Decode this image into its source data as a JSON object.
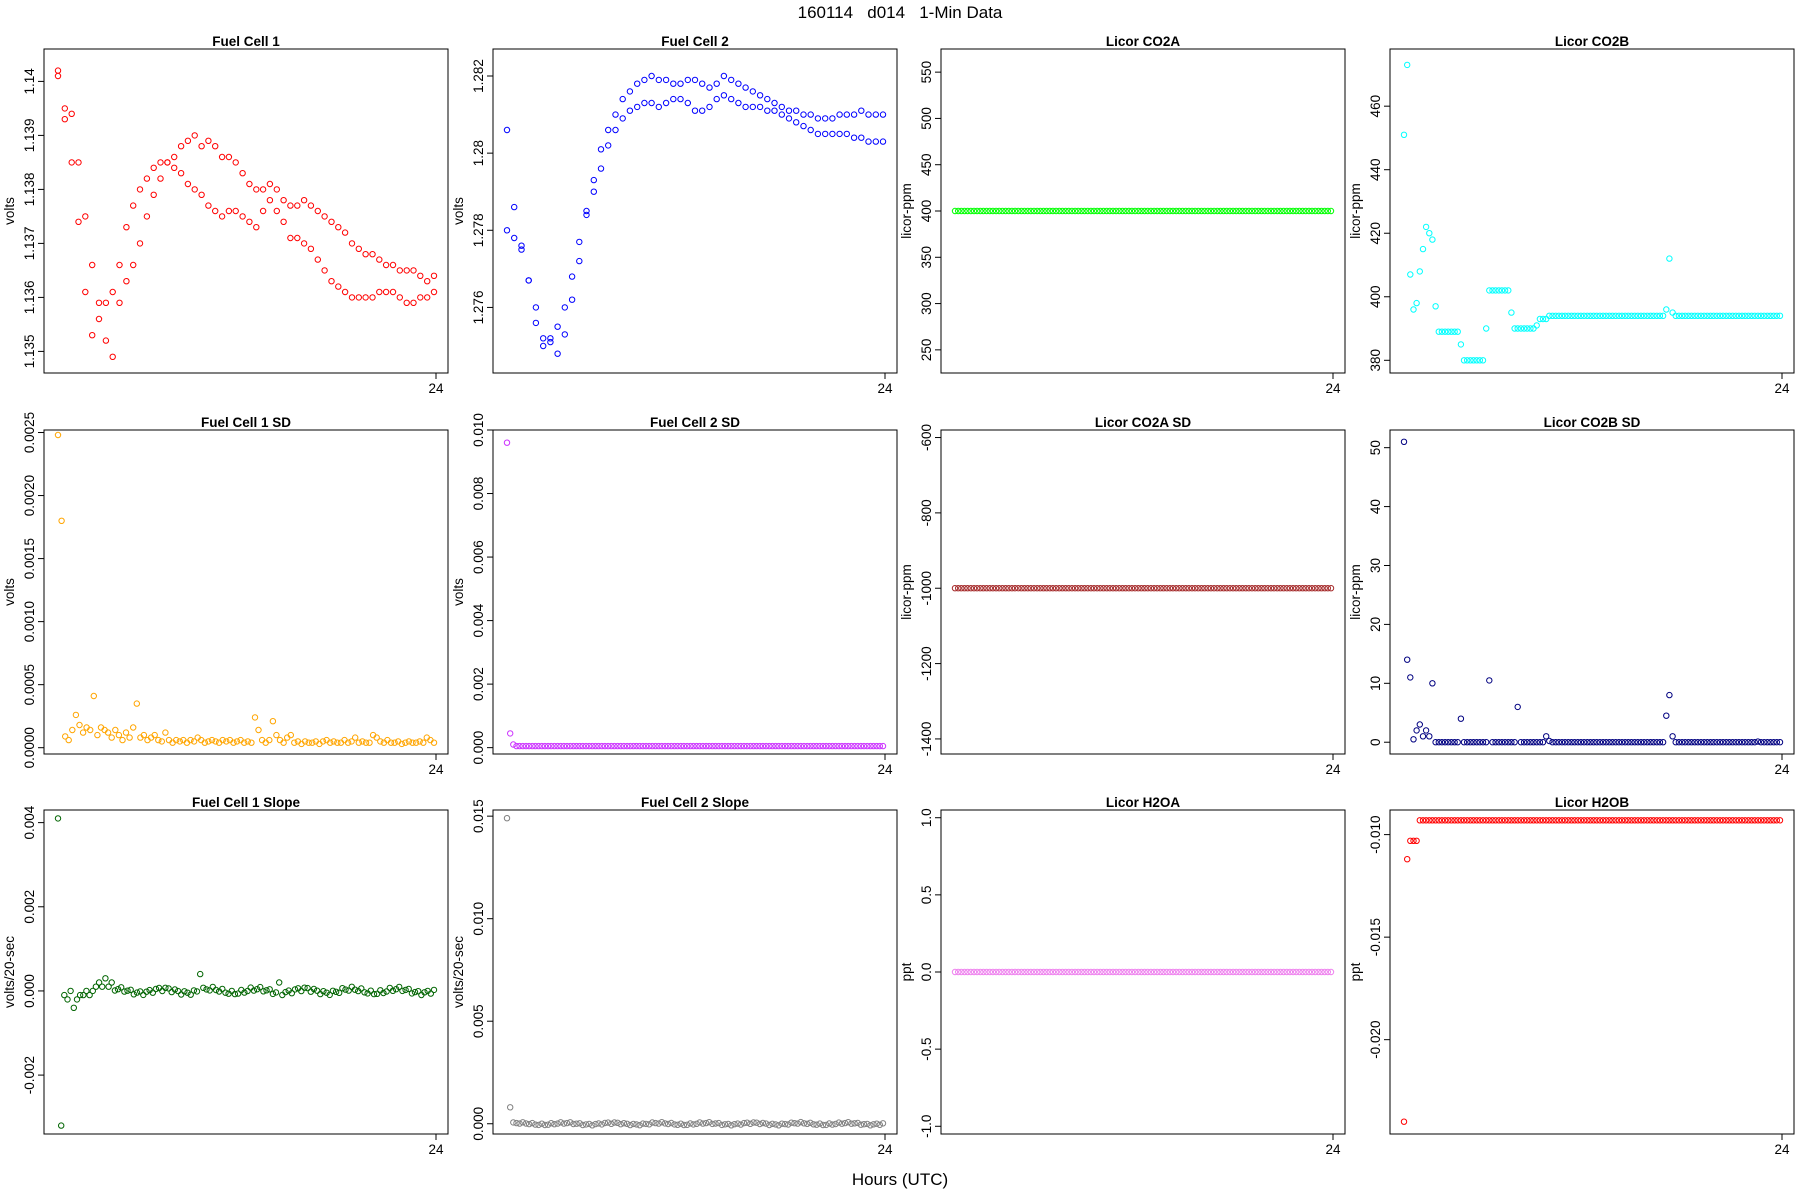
{
  "title": "160114   d014   1-Min Data",
  "xlabel": "Hours (UTC)",
  "chart_data": [
    {
      "type": "scatter",
      "title": "Fuel Cell 1",
      "ylabel": "volts",
      "xlim": [
        0,
        24
      ],
      "xticks": [
        24
      ],
      "ylim": [
        1.1346,
        1.1406
      ],
      "yticks": [
        1.135,
        1.136,
        1.137,
        1.138,
        1.139,
        1.14
      ],
      "color": "#ff0000",
      "series": [
        {
          "values": [
            1.1402,
            1.1395,
            1.1394,
            1.1385,
            1.1375,
            1.1366,
            1.1359,
            1.1352,
            1.1349,
            1.1359,
            1.1363,
            1.1366,
            1.137,
            1.1375,
            1.1379,
            1.1382,
            1.1385,
            1.1386,
            1.1388,
            1.1389,
            1.139,
            1.1388,
            1.1389,
            1.1388,
            1.1386,
            1.1386,
            1.1385,
            1.1383,
            1.1381,
            1.138,
            1.138,
            1.1381,
            1.138,
            1.1378,
            1.1377,
            1.1377,
            1.1378,
            1.1377,
            1.1376,
            1.1375,
            1.1374,
            1.1373,
            1.1372,
            1.137,
            1.1369,
            1.1368,
            1.1368,
            1.1367,
            1.1366,
            1.1366,
            1.1365,
            1.1365,
            1.1365,
            1.1364,
            1.1363,
            1.1364
          ]
        },
        {
          "values": [
            1.1401,
            1.1393,
            1.1385,
            1.1374,
            1.1361,
            1.1353,
            1.1356,
            1.1359,
            1.1361,
            1.1366,
            1.1373,
            1.1377,
            1.138,
            1.1382,
            1.1384,
            1.1385,
            1.1385,
            1.1384,
            1.1383,
            1.1381,
            1.138,
            1.1379,
            1.1377,
            1.1376,
            1.1375,
            1.1376,
            1.1376,
            1.1375,
            1.1374,
            1.1373,
            1.1376,
            1.1378,
            1.1376,
            1.1374,
            1.1371,
            1.1371,
            1.137,
            1.1369,
            1.1367,
            1.1365,
            1.1363,
            1.1362,
            1.1361,
            1.136,
            1.136,
            1.136,
            1.136,
            1.1361,
            1.1361,
            1.1361,
            1.136,
            1.1359,
            1.1359,
            1.136,
            1.136,
            1.1361
          ]
        }
      ]
    },
    {
      "type": "scatter",
      "title": "Fuel Cell 2",
      "ylabel": "volts",
      "xlim": [
        0,
        24
      ],
      "xticks": [
        24
      ],
      "ylim": [
        1.2743,
        1.2827
      ],
      "yticks": [
        1.276,
        1.278,
        1.28,
        1.282
      ],
      "color": "#0000ff",
      "series": [
        {
          "values": [
            1.2806,
            1.2786,
            1.2776,
            1.2767,
            1.276,
            1.2752,
            1.2752,
            1.2748,
            1.2753,
            1.2762,
            1.2772,
            1.2784,
            1.2793,
            1.2801,
            1.2806,
            1.281,
            1.2814,
            1.2816,
            1.2818,
            1.2819,
            1.282,
            1.2819,
            1.2819,
            1.2818,
            1.2818,
            1.2819,
            1.2819,
            1.2818,
            1.2817,
            1.2818,
            1.282,
            1.2819,
            1.2818,
            1.2817,
            1.2816,
            1.2815,
            1.2814,
            1.2813,
            1.2812,
            1.2811,
            1.2811,
            1.281,
            1.281,
            1.2809,
            1.2809,
            1.2809,
            1.281,
            1.281,
            1.281,
            1.2811,
            1.281,
            1.281,
            1.281
          ]
        },
        {
          "values": [
            1.278,
            1.2778,
            1.2775,
            1.2767,
            1.2756,
            1.275,
            1.2751,
            1.2755,
            1.276,
            1.2768,
            1.2777,
            1.2785,
            1.279,
            1.2796,
            1.2802,
            1.2806,
            1.2809,
            1.2811,
            1.2812,
            1.2813,
            1.2813,
            1.2812,
            1.2813,
            1.2814,
            1.2814,
            1.2813,
            1.2811,
            1.2811,
            1.2812,
            1.2814,
            1.2815,
            1.2814,
            1.2813,
            1.2812,
            1.2812,
            1.2812,
            1.2811,
            1.2811,
            1.281,
            1.2809,
            1.2808,
            1.2807,
            1.2806,
            1.2805,
            1.2805,
            1.2805,
            1.2805,
            1.2805,
            1.2804,
            1.2804,
            1.2803,
            1.2803,
            1.2803
          ]
        }
      ]
    },
    {
      "type": "scatter",
      "title": "Licor CO2A",
      "ylabel": "licor-ppm",
      "xlim": [
        0,
        24
      ],
      "xticks": [
        24
      ],
      "ylim": [
        225,
        575
      ],
      "yticks": [
        250,
        300,
        350,
        400,
        450,
        500,
        550
      ],
      "color": "#00ff00",
      "series": [
        {
          "constant": 400,
          "n": 120
        }
      ]
    },
    {
      "type": "scatter",
      "title": "Licor CO2B",
      "ylabel": "licor-ppm",
      "xlim": [
        0,
        24
      ],
      "xticks": [
        24
      ],
      "ylim": [
        376,
        478
      ],
      "yticks": [
        380,
        400,
        420,
        440,
        460
      ],
      "color": "#00ffff",
      "series": [
        {
          "values": [
            451,
            473,
            407,
            396,
            398,
            408,
            415,
            422,
            420,
            418,
            397,
            389,
            389,
            389,
            389,
            389,
            389,
            389,
            385,
            380,
            380,
            380,
            380,
            380,
            380,
            380,
            390,
            402,
            402,
            402,
            402,
            402,
            402,
            402,
            395,
            390,
            390,
            390,
            390,
            390,
            390,
            390,
            391,
            393,
            393,
            393,
            394,
            394,
            394,
            394,
            394,
            394,
            394,
            394,
            394,
            394,
            394,
            394,
            394,
            394,
            394,
            394,
            394,
            394,
            394,
            394,
            394,
            394,
            394,
            394,
            394,
            394,
            394,
            394,
            394,
            394,
            394,
            394,
            394,
            394,
            394,
            394,
            394,
            396,
            412,
            395,
            394,
            394,
            394,
            394,
            394,
            394,
            394,
            394,
            394,
            394,
            394,
            394,
            394,
            394,
            394,
            394,
            394,
            394,
            394,
            394,
            394,
            394,
            394,
            394,
            394,
            394,
            394,
            394,
            394,
            394,
            394,
            394,
            394,
            394
          ]
        }
      ]
    },
    {
      "type": "scatter",
      "title": "Fuel Cell 1 SD",
      "ylabel": "volts",
      "xlim": [
        0,
        24
      ],
      "xticks": [
        24
      ],
      "ylim": [
        -5e-05,
        0.00252
      ],
      "yticks": [
        0.0,
        0.0005,
        0.001,
        0.0015,
        0.002,
        0.0025
      ],
      "ytick_labels": [
        "0.0000",
        "0.0005",
        "0.0010",
        "0.0015",
        "0.0020",
        "0.0025"
      ],
      "color": "#ffa500",
      "series": [
        {
          "values": [
            0.00248,
            0.0018,
            9e-05,
            6e-05,
            0.00014,
            0.00026,
            0.00018,
            0.00012,
            0.00016,
            0.00014,
            0.00041,
            0.0001,
            0.00016,
            0.00014,
            0.00012,
            8e-05,
            0.00014,
            0.0001,
            6e-05,
            0.00012,
            8e-05,
            0.00016,
            0.00035,
            8e-05,
            0.0001,
            6e-05,
            8e-05,
            0.0001,
            6e-05,
            5e-05,
            0.00012,
            6e-05,
            4e-05,
            6e-05,
            5e-05,
            6e-05,
            4e-05,
            6e-05,
            5e-05,
            8e-05,
            6e-05,
            4e-05,
            5e-05,
            6e-05,
            5e-05,
            4e-05,
            6e-05,
            5e-05,
            6e-05,
            4e-05,
            5e-05,
            6e-05,
            4e-05,
            5e-05,
            4e-05,
            0.00024,
            0.00014,
            6e-05,
            4e-05,
            6e-05,
            0.00021,
            0.0001,
            6e-05,
            4e-05,
            8e-05,
            0.0001,
            4e-05,
            5e-05,
            3e-05,
            5e-05,
            4e-05,
            4e-05,
            5e-05,
            3e-05,
            5e-05,
            6e-05,
            4e-05,
            5e-05,
            4e-05,
            4e-05,
            6e-05,
            4e-05,
            5e-05,
            8e-05,
            4e-05,
            5e-05,
            4e-05,
            4e-05,
            0.0001,
            8e-05,
            5e-05,
            4e-05,
            6e-05,
            4e-05,
            4e-05,
            5e-05,
            3e-05,
            4e-05,
            5e-05,
            4e-05,
            4e-05,
            5e-05,
            4e-05,
            8e-05,
            6e-05,
            4e-05
          ]
        }
      ]
    },
    {
      "type": "scatter",
      "title": "Fuel Cell 2 SD",
      "ylabel": "volts",
      "xlim": [
        0,
        24
      ],
      "xticks": [
        24
      ],
      "ylim": [
        -0.0002,
        0.01
      ],
      "yticks": [
        0.0,
        0.002,
        0.004,
        0.006,
        0.008,
        0.01
      ],
      "ytick_labels": [
        "0.000",
        "0.002",
        "0.004",
        "0.006",
        "0.008",
        "0.010"
      ],
      "color": "#cc33ff",
      "series": [
        {
          "head": [
            0.0096,
            0.00045,
            0.0001
          ],
          "constant": 5e-05,
          "n": 120
        }
      ]
    },
    {
      "type": "scatter",
      "title": "Licor CO2A SD",
      "ylabel": "licor-ppm",
      "xlim": [
        0,
        24
      ],
      "xticks": [
        24
      ],
      "ylim": [
        -1440,
        -580
      ],
      "yticks": [
        -1400,
        -1200,
        -1000,
        -800,
        -600
      ],
      "color": "#a52a2a",
      "series": [
        {
          "constant": -1000,
          "n": 120
        }
      ]
    },
    {
      "type": "scatter",
      "title": "Licor CO2B SD",
      "ylabel": "licor-ppm",
      "xlim": [
        0,
        24
      ],
      "xticks": [
        24
      ],
      "ylim": [
        -2,
        53
      ],
      "yticks": [
        0,
        10,
        20,
        30,
        40,
        50
      ],
      "color": "#000080",
      "series": [
        {
          "values": [
            51,
            14,
            11,
            0.5,
            2,
            3,
            1,
            2,
            1,
            10,
            0,
            0,
            0,
            0,
            0,
            0,
            0,
            0,
            4,
            0,
            0,
            0,
            0,
            0,
            0,
            0,
            0,
            10.5,
            0,
            0,
            0,
            0,
            0,
            0,
            0,
            0,
            6,
            0,
            0,
            0,
            0,
            0,
            0,
            0,
            0,
            1,
            0.2,
            0,
            0,
            0,
            0,
            0,
            0,
            0,
            0,
            0,
            0,
            0,
            0,
            0,
            0,
            0,
            0,
            0,
            0,
            0,
            0,
            0,
            0,
            0,
            0,
            0,
            0,
            0,
            0,
            0,
            0,
            0,
            0,
            0,
            0,
            0,
            0,
            4.5,
            8,
            1,
            0,
            0,
            0,
            0,
            0,
            0,
            0,
            0,
            0,
            0,
            0,
            0,
            0,
            0,
            0,
            0,
            0,
            0,
            0,
            0,
            0,
            0,
            0,
            0,
            0,
            0,
            0.1,
            0,
            0,
            0,
            0,
            0,
            0,
            0
          ]
        }
      ]
    },
    {
      "type": "scatter",
      "title": "Fuel Cell 1 Slope",
      "ylabel": "volts/20-sec",
      "xlim": [
        0,
        24
      ],
      "xticks": [
        24
      ],
      "ylim": [
        -0.0034,
        0.0043
      ],
      "yticks": [
        -0.002,
        0.0,
        0.002,
        0.004
      ],
      "ytick_labels": [
        "-0.002",
        "0.000",
        "0.002",
        "0.004"
      ],
      "color": "#006400",
      "series": [
        {
          "head": [
            0.0041,
            -0.0032,
            -0.0001,
            -0.0002,
            0.0,
            -0.0004,
            -0.0002,
            -0.0001,
            -0.0001,
            0.0,
            -0.0001,
            0.0,
            0.0001,
            0.0002,
            0.0001,
            0.0003,
            0.0001,
            0.0002
          ],
          "amplitude": 0.0001,
          "spikes": {
            "45": 0.0004,
            "70": 0.0002
          },
          "n": 120
        }
      ]
    },
    {
      "type": "scatter",
      "title": "Fuel Cell 2 Slope",
      "ylabel": "volts/20-sec",
      "xlim": [
        0,
        24
      ],
      "xticks": [
        24
      ],
      "ylim": [
        -0.0005,
        0.0153
      ],
      "yticks": [
        0.0,
        0.005,
        0.01,
        0.015
      ],
      "ytick_labels": [
        "0.000",
        "0.005",
        "0.010",
        "0.015"
      ],
      "color": "#808080",
      "series": [
        {
          "head": [
            0.0149,
            0.0008
          ],
          "amplitude": 8e-05,
          "constant": 0.0,
          "n": 120
        }
      ]
    },
    {
      "type": "scatter",
      "title": "Licor H2OA",
      "ylabel": "ppt",
      "xlim": [
        0,
        24
      ],
      "xticks": [
        24
      ],
      "ylim": [
        -1.05,
        1.05
      ],
      "yticks": [
        -1.0,
        -0.5,
        0.0,
        0.5,
        1.0
      ],
      "ytick_labels": [
        "-1.0",
        "-0.5",
        "0.0",
        "0.5",
        "1.0"
      ],
      "color": "#ee82ee",
      "series": [
        {
          "constant": 0.0,
          "n": 120
        }
      ]
    },
    {
      "type": "scatter",
      "title": "Licor H2OB",
      "ylabel": "ppt",
      "xlim": [
        0,
        24
      ],
      "xticks": [
        24
      ],
      "ylim": [
        -0.0246,
        -0.0088
      ],
      "yticks": [
        -0.02,
        -0.015,
        -0.01
      ],
      "ytick_labels": [
        "-0.020",
        "-0.015",
        "-0.010"
      ],
      "color": "#ff0000",
      "series": [
        {
          "head": [
            -0.024,
            -0.0112,
            -0.0103,
            -0.0103,
            -0.0103
          ],
          "constant": -0.0093,
          "n": 120
        }
      ]
    }
  ]
}
